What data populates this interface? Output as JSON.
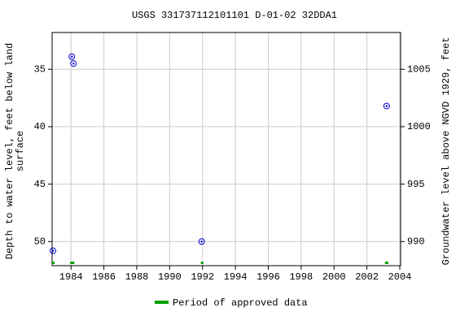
{
  "chart_data": {
    "type": "scatter",
    "title": "USGS 331737112101101 D-01-02 32DDA1",
    "ylabel": [
      "Depth to water level, feet below land",
      "surface"
    ],
    "y2label": "Groundwater level above NGVD 1929, feet",
    "series": [
      {
        "color": "#0000cc",
        "x": [
          1982.9,
          1984.05,
          1984.15,
          1991.95,
          2003.2
        ],
        "values": [
          50.8,
          33.9,
          34.5,
          50.0,
          38.2
        ]
      }
    ],
    "xlim": [
      1982.85,
      2004.05
    ],
    "xticks": [
      1984,
      1986,
      1988,
      1990,
      1992,
      1994,
      1996,
      1998,
      2000,
      2002,
      2004
    ],
    "ylim": [
      31.8,
      52.1
    ],
    "yticks": [
      35,
      40,
      45,
      50
    ],
    "y_inverted": true,
    "y2lim": [
      1008.2,
      987.9
    ],
    "y2ticks": [
      990,
      995,
      1000,
      1005
    ],
    "grid": true,
    "approved_periods": {
      "name": "Period of approved data",
      "color": "#00a000",
      "ranges": [
        [
          1982.85,
          1983.0
        ],
        [
          1983.95,
          1984.2
        ],
        [
          1991.9,
          1992.05
        ],
        [
          2003.1,
          2003.3
        ]
      ]
    }
  }
}
